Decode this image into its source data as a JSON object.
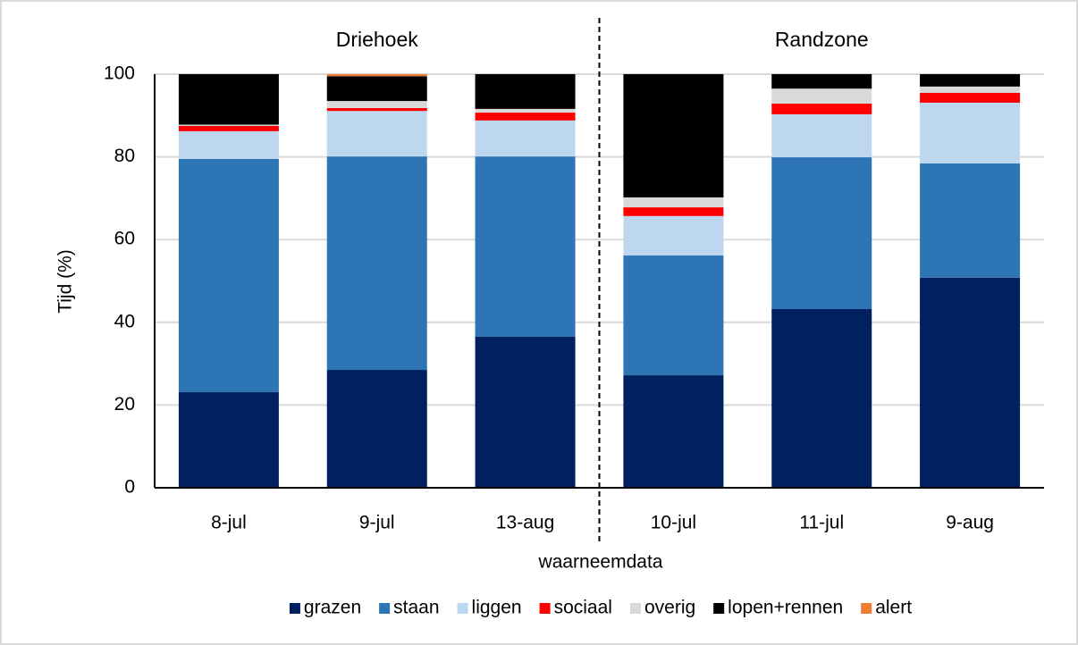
{
  "chart_data": {
    "type": "stacked_bar",
    "groups": [
      "Driehoek",
      "Randzone"
    ],
    "categories": [
      "8-jul",
      "9-jul",
      "13-aug",
      "10-jul",
      "11-jul",
      "9-aug"
    ],
    "y_label": "Tijd (%)",
    "x_label": "waarneemdata",
    "ylim": [
      0,
      100
    ],
    "yticks": [
      0,
      20,
      40,
      60,
      80,
      100
    ],
    "grid": true,
    "legend": "bottom",
    "series": [
      {
        "name": "grazen",
        "color": "#002060",
        "values": [
          23.1,
          28.5,
          36.5,
          27.2,
          43.2,
          50.8
        ]
      },
      {
        "name": "staan",
        "color": "#2e75b6",
        "values": [
          56.4,
          51.6,
          43.6,
          29.0,
          36.7,
          27.6
        ]
      },
      {
        "name": "liggen",
        "color": "#bdd7ee",
        "values": [
          6.7,
          11.0,
          8.7,
          9.5,
          10.4,
          14.7
        ]
      },
      {
        "name": "sociaal",
        "color": "#ff0000",
        "values": [
          1.3,
          0.7,
          1.9,
          2.1,
          2.6,
          2.4
        ]
      },
      {
        "name": "overig",
        "color": "#d9d9d9",
        "values": [
          0.3,
          1.7,
          0.9,
          2.4,
          3.6,
          1.5
        ]
      },
      {
        "name": "lopen+rennen",
        "color": "#000000",
        "values": [
          12.2,
          6.0,
          8.4,
          29.8,
          3.5,
          3.0
        ]
      },
      {
        "name": "alert",
        "color": "#ed7d31",
        "values": [
          0,
          0.5,
          0,
          0,
          0,
          0
        ]
      }
    ]
  }
}
